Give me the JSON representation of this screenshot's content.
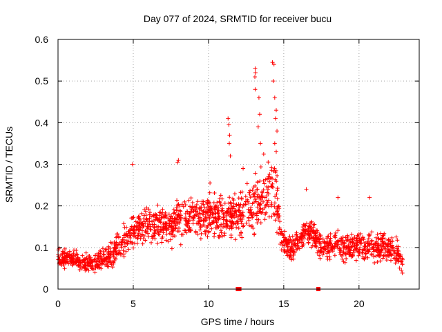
{
  "chart_data": {
    "type": "scatter",
    "title": "Day 077 of 2024, SRMTID for receiver bucu",
    "xlabel": "GPS time / hours",
    "ylabel": "SRMTID / TECUs",
    "xlim": [
      0,
      24
    ],
    "ylim": [
      0,
      0.6
    ],
    "x_ticks": [
      0,
      5,
      10,
      15,
      20
    ],
    "x_tick_labels": [
      "0",
      "5",
      "10",
      "15",
      "20"
    ],
    "y_ticks": [
      0,
      0.1,
      0.2,
      0.3,
      0.4,
      0.5,
      0.6
    ],
    "y_tick_labels": [
      "0",
      "0.1",
      "0.2",
      "0.3",
      "0.4",
      "0.5",
      "0.6"
    ],
    "grid": true,
    "marker": "plus",
    "color": "#ff0000",
    "envelope": {
      "x": [
        0,
        0.5,
        1,
        1.5,
        2,
        2.5,
        3,
        3.5,
        4,
        4.5,
        5,
        5.5,
        6,
        6.5,
        7,
        7.5,
        8,
        8.5,
        9,
        9.5,
        10,
        10.5,
        11,
        11.5,
        12,
        12.5,
        13,
        13.5,
        14,
        14.5,
        15,
        15.5,
        16,
        16.5,
        17,
        17.5,
        18,
        18.5,
        19,
        19.5,
        20,
        20.5,
        21,
        21.5,
        22,
        22.5,
        22.9
      ],
      "center": [
        0.075,
        0.075,
        0.07,
        0.065,
        0.065,
        0.065,
        0.07,
        0.08,
        0.1,
        0.12,
        0.14,
        0.15,
        0.155,
        0.155,
        0.15,
        0.155,
        0.165,
        0.17,
        0.175,
        0.17,
        0.18,
        0.18,
        0.16,
        0.17,
        0.18,
        0.19,
        0.2,
        0.22,
        0.24,
        0.22,
        0.11,
        0.1,
        0.12,
        0.14,
        0.13,
        0.1,
        0.1,
        0.11,
        0.1,
        0.1,
        0.11,
        0.1,
        0.1,
        0.1,
        0.1,
        0.09,
        0.06
      ],
      "spread": [
        0.03,
        0.03,
        0.03,
        0.03,
        0.03,
        0.03,
        0.035,
        0.04,
        0.045,
        0.05,
        0.055,
        0.055,
        0.06,
        0.06,
        0.06,
        0.06,
        0.065,
        0.065,
        0.065,
        0.065,
        0.07,
        0.07,
        0.07,
        0.07,
        0.075,
        0.08,
        0.09,
        0.1,
        0.12,
        0.12,
        0.04,
        0.04,
        0.045,
        0.045,
        0.045,
        0.045,
        0.045,
        0.045,
        0.045,
        0.045,
        0.045,
        0.045,
        0.045,
        0.045,
        0.04,
        0.04,
        0.03
      ]
    },
    "scatter_density_per_hour": 80,
    "highlight_points": [
      {
        "x": 4.95,
        "y": 0.3
      },
      {
        "x": 7.95,
        "y": 0.305
      },
      {
        "x": 8.0,
        "y": 0.31
      },
      {
        "x": 11.3,
        "y": 0.41
      },
      {
        "x": 11.35,
        "y": 0.395
      },
      {
        "x": 11.4,
        "y": 0.37
      },
      {
        "x": 11.38,
        "y": 0.35
      },
      {
        "x": 11.45,
        "y": 0.32
      },
      {
        "x": 12.3,
        "y": 0.29
      },
      {
        "x": 13.1,
        "y": 0.53
      },
      {
        "x": 13.12,
        "y": 0.52
      },
      {
        "x": 13.08,
        "y": 0.51
      },
      {
        "x": 13.1,
        "y": 0.48
      },
      {
        "x": 13.35,
        "y": 0.46
      },
      {
        "x": 13.4,
        "y": 0.42
      },
      {
        "x": 13.3,
        "y": 0.39
      },
      {
        "x": 13.45,
        "y": 0.35
      },
      {
        "x": 14.25,
        "y": 0.545
      },
      {
        "x": 14.35,
        "y": 0.54
      },
      {
        "x": 14.3,
        "y": 0.5
      },
      {
        "x": 14.4,
        "y": 0.46
      },
      {
        "x": 14.5,
        "y": 0.43
      },
      {
        "x": 14.45,
        "y": 0.41
      },
      {
        "x": 14.55,
        "y": 0.38
      },
      {
        "x": 14.4,
        "y": 0.35
      },
      {
        "x": 14.5,
        "y": 0.33
      },
      {
        "x": 16.5,
        "y": 0.24
      },
      {
        "x": 18.6,
        "y": 0.22
      },
      {
        "x": 20.7,
        "y": 0.22
      },
      {
        "x": 10.1,
        "y": 0.255
      }
    ],
    "gap_markers": [
      {
        "x": 11.95,
        "y": 0.0
      },
      {
        "x": 12.05,
        "y": 0.0
      },
      {
        "x": 17.3,
        "y": 0.0
      }
    ]
  }
}
